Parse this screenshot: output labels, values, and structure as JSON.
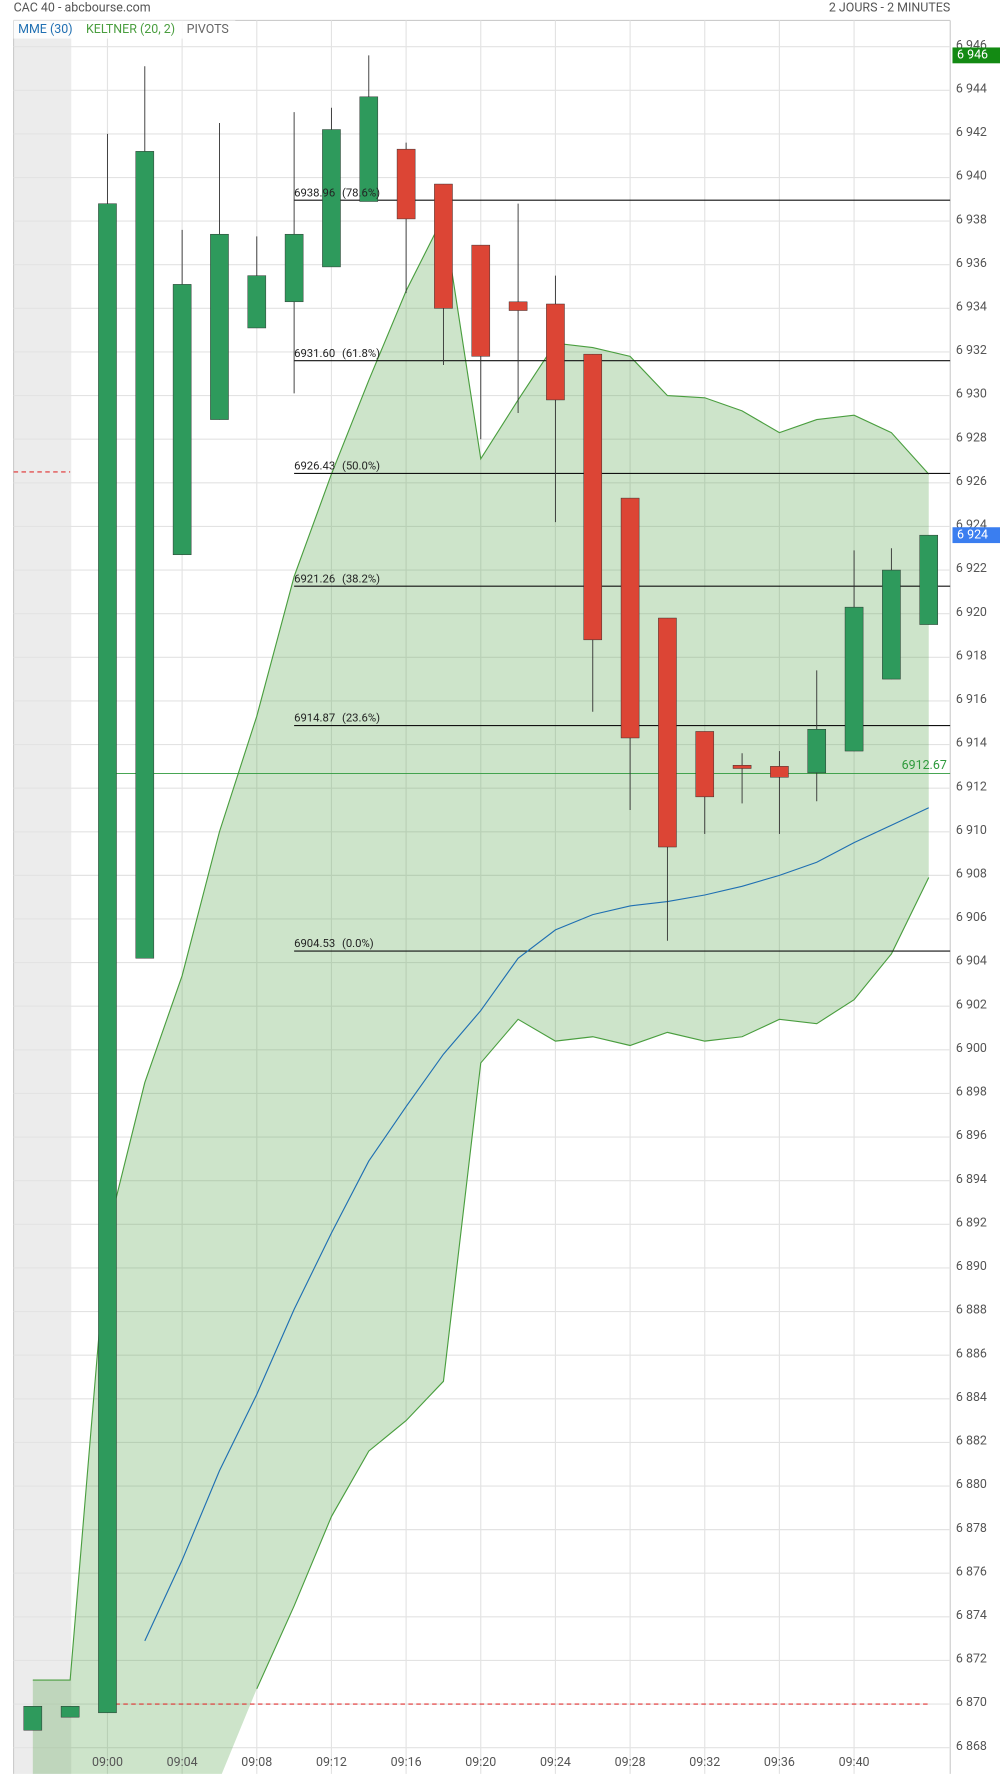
{
  "chart_data": {
    "type": "candlestick",
    "title": "CAC 40 - abcbourse.com",
    "subtitle": "2 JOURS - 2 MINUTES",
    "categories": [
      null,
      null,
      "09:00",
      null,
      "09:04",
      null,
      "09:08",
      null,
      "09:12",
      null,
      "09:16",
      null,
      "09:20",
      null,
      "09:24",
      null,
      "09:28",
      null,
      "09:32",
      null,
      "09:36",
      null,
      "09:40",
      null,
      null
    ],
    "open": [
      6868.8,
      6869.4,
      6869.6,
      6904.2,
      6922.7,
      6928.9,
      6933.1,
      6934.3,
      6935.9,
      6938.9,
      6941.3,
      6939.7,
      6936.9,
      6934.3,
      6934.2,
      6931.9,
      6925.3,
      6919.8,
      6914.6,
      6913.05,
      6913.0,
      6912.7,
      6913.7,
      6917.0,
      6919.5
    ],
    "high": [
      6869.9,
      6869.9,
      6942.0,
      6945.1,
      6937.6,
      6942.5,
      6937.3,
      6943.0,
      6943.2,
      6945.6,
      6941.6,
      6939.7,
      6936.9,
      6938.8,
      6935.5,
      6931.9,
      6925.3,
      6919.8,
      6914.6,
      6913.6,
      6913.7,
      6917.4,
      6922.9,
      6923.0,
      6923.6
    ],
    "low": [
      6868.8,
      6869.4,
      6869.6,
      6904.2,
      6922.7,
      6928.9,
      6933.1,
      6930.1,
      6935.9,
      6938.9,
      6934.7,
      6931.4,
      6928.0,
      6929.2,
      6924.2,
      6915.5,
      6911.0,
      6905.0,
      6909.9,
      6911.3,
      6909.9,
      6911.4,
      6913.7,
      6917.0,
      6919.5
    ],
    "close": [
      6869.9,
      6869.9,
      6938.8,
      6941.2,
      6935.1,
      6937.4,
      6935.5,
      6937.4,
      6942.2,
      6943.7,
      6938.1,
      6934.0,
      6931.8,
      6933.9,
      6929.8,
      6918.8,
      6914.3,
      6909.3,
      6911.6,
      6912.9,
      6912.5,
      6914.7,
      6920.3,
      6922.0,
      6923.6
    ],
    "up_color": "#2e9a5c",
    "down_color": "#dc4535",
    "series": [
      {
        "name": "MME (30)",
        "color": "#1f6fb2",
        "values": [
          null,
          null,
          null,
          6872.9,
          6876.6,
          6880.7,
          6884.2,
          6888.1,
          6891.6,
          6894.9,
          6897.4,
          6899.8,
          6901.8,
          6904.2,
          6905.5,
          6906.2,
          6906.6,
          6906.8,
          6907.1,
          6907.5,
          6908.0,
          6908.6,
          6909.5,
          6910.3,
          6911.1
        ]
      },
      {
        "name": "KELTNER (20, 2)",
        "color": "#4a9e3f",
        "upper": [
          6871.1,
          6871.1,
          6891.6,
          6898.5,
          6903.4,
          6910.0,
          6915.3,
          6921.7,
          6926.4,
          6930.7,
          6934.8,
          6938.2,
          6927.1,
          6929.8,
          6932.4,
          6932.2,
          6931.8,
          6930.0,
          6929.9,
          6929.3,
          6928.3,
          6928.9,
          6929.1,
          6928.3,
          6926.4
        ],
        "lower": [
          null,
          null,
          null,
          null,
          null,
          null,
          6870.7,
          6874.5,
          6878.6,
          6881.6,
          6883.0,
          6884.8,
          6899.4,
          6901.4,
          6900.4,
          6900.6,
          6900.2,
          6900.8,
          6900.4,
          6900.6,
          6901.4,
          6901.2,
          6902.3,
          6904.4,
          6907.9
        ]
      },
      {
        "name": "PIVOTS",
        "color": "#666666",
        "line_color": "#e03030",
        "levels": [
          6926.5,
          6870.0
        ]
      }
    ],
    "fibonacci": [
      {
        "value": 6938.96,
        "label": "6938.96",
        "ratio": "(78.6%)"
      },
      {
        "value": 6931.6,
        "label": "6931.60",
        "ratio": "(61.8%)"
      },
      {
        "value": 6926.43,
        "label": "6926.43",
        "ratio": "(50.0%)"
      },
      {
        "value": 6921.26,
        "label": "6921.26",
        "ratio": "(38.2%)"
      },
      {
        "value": 6914.87,
        "label": "6914.87",
        "ratio": "(23.6%)"
      },
      {
        "value": 6904.53,
        "label": "6904.53",
        "ratio": "(0.0%)"
      }
    ],
    "level": 6912.67,
    "level_color": "#2e9a3c",
    "badges": [
      {
        "value": 6945.6,
        "label": "6 946",
        "color": "#138a13"
      },
      {
        "value": 6923.6,
        "label": "6 924",
        "color": "#3a7ef0"
      }
    ],
    "ylim": [
      6866.8,
      6947.2
    ],
    "yticks": [
      {
        "value": 6868,
        "label": "6 868"
      },
      {
        "value": 6870,
        "label": "6 870"
      },
      {
        "value": 6872,
        "label": "6 872"
      },
      {
        "value": 6874,
        "label": "6 874"
      },
      {
        "value": 6876,
        "label": "6 876"
      },
      {
        "value": 6878,
        "label": "6 878"
      },
      {
        "value": 6880,
        "label": "6 880"
      },
      {
        "value": 6882,
        "label": "6 882"
      },
      {
        "value": 6884,
        "label": "6 884"
      },
      {
        "value": 6886,
        "label": "6 886"
      },
      {
        "value": 6888,
        "label": "6 888"
      },
      {
        "value": 6890,
        "label": "6 890"
      },
      {
        "value": 6892,
        "label": "6 892"
      },
      {
        "value": 6894,
        "label": "6 894"
      },
      {
        "value": 6896,
        "label": "6 896"
      },
      {
        "value": 6898,
        "label": "6 898"
      },
      {
        "value": 6900,
        "label": "6 900"
      },
      {
        "value": 6902,
        "label": "6 902"
      },
      {
        "value": 6904,
        "label": "6 904"
      },
      {
        "value": 6906,
        "label": "6 906"
      },
      {
        "value": 6908,
        "label": "6 908"
      },
      {
        "value": 6910,
        "label": "6 910"
      },
      {
        "value": 6912,
        "label": "6 912"
      },
      {
        "value": 6914,
        "label": "6 914"
      },
      {
        "value": 6916,
        "label": "6 916"
      },
      {
        "value": 6918,
        "label": "6 918"
      },
      {
        "value": 6920,
        "label": "6 920"
      },
      {
        "value": 6922,
        "label": "6 922"
      },
      {
        "value": 6924,
        "label": "6 924"
      },
      {
        "value": 6926,
        "label": "6 926"
      },
      {
        "value": 6928,
        "label": "6 928"
      },
      {
        "value": 6930,
        "label": "6 930"
      },
      {
        "value": 6932,
        "label": "6 932"
      },
      {
        "value": 6934,
        "label": "6 934"
      },
      {
        "value": 6936,
        "label": "6 936"
      },
      {
        "value": 6938,
        "label": "6 938"
      },
      {
        "value": 6940,
        "label": "6 940"
      },
      {
        "value": 6942,
        "label": "6 942"
      },
      {
        "value": 6944,
        "label": "6 944"
      },
      {
        "value": 6946,
        "label": "6 946"
      }
    ],
    "grid": true
  }
}
